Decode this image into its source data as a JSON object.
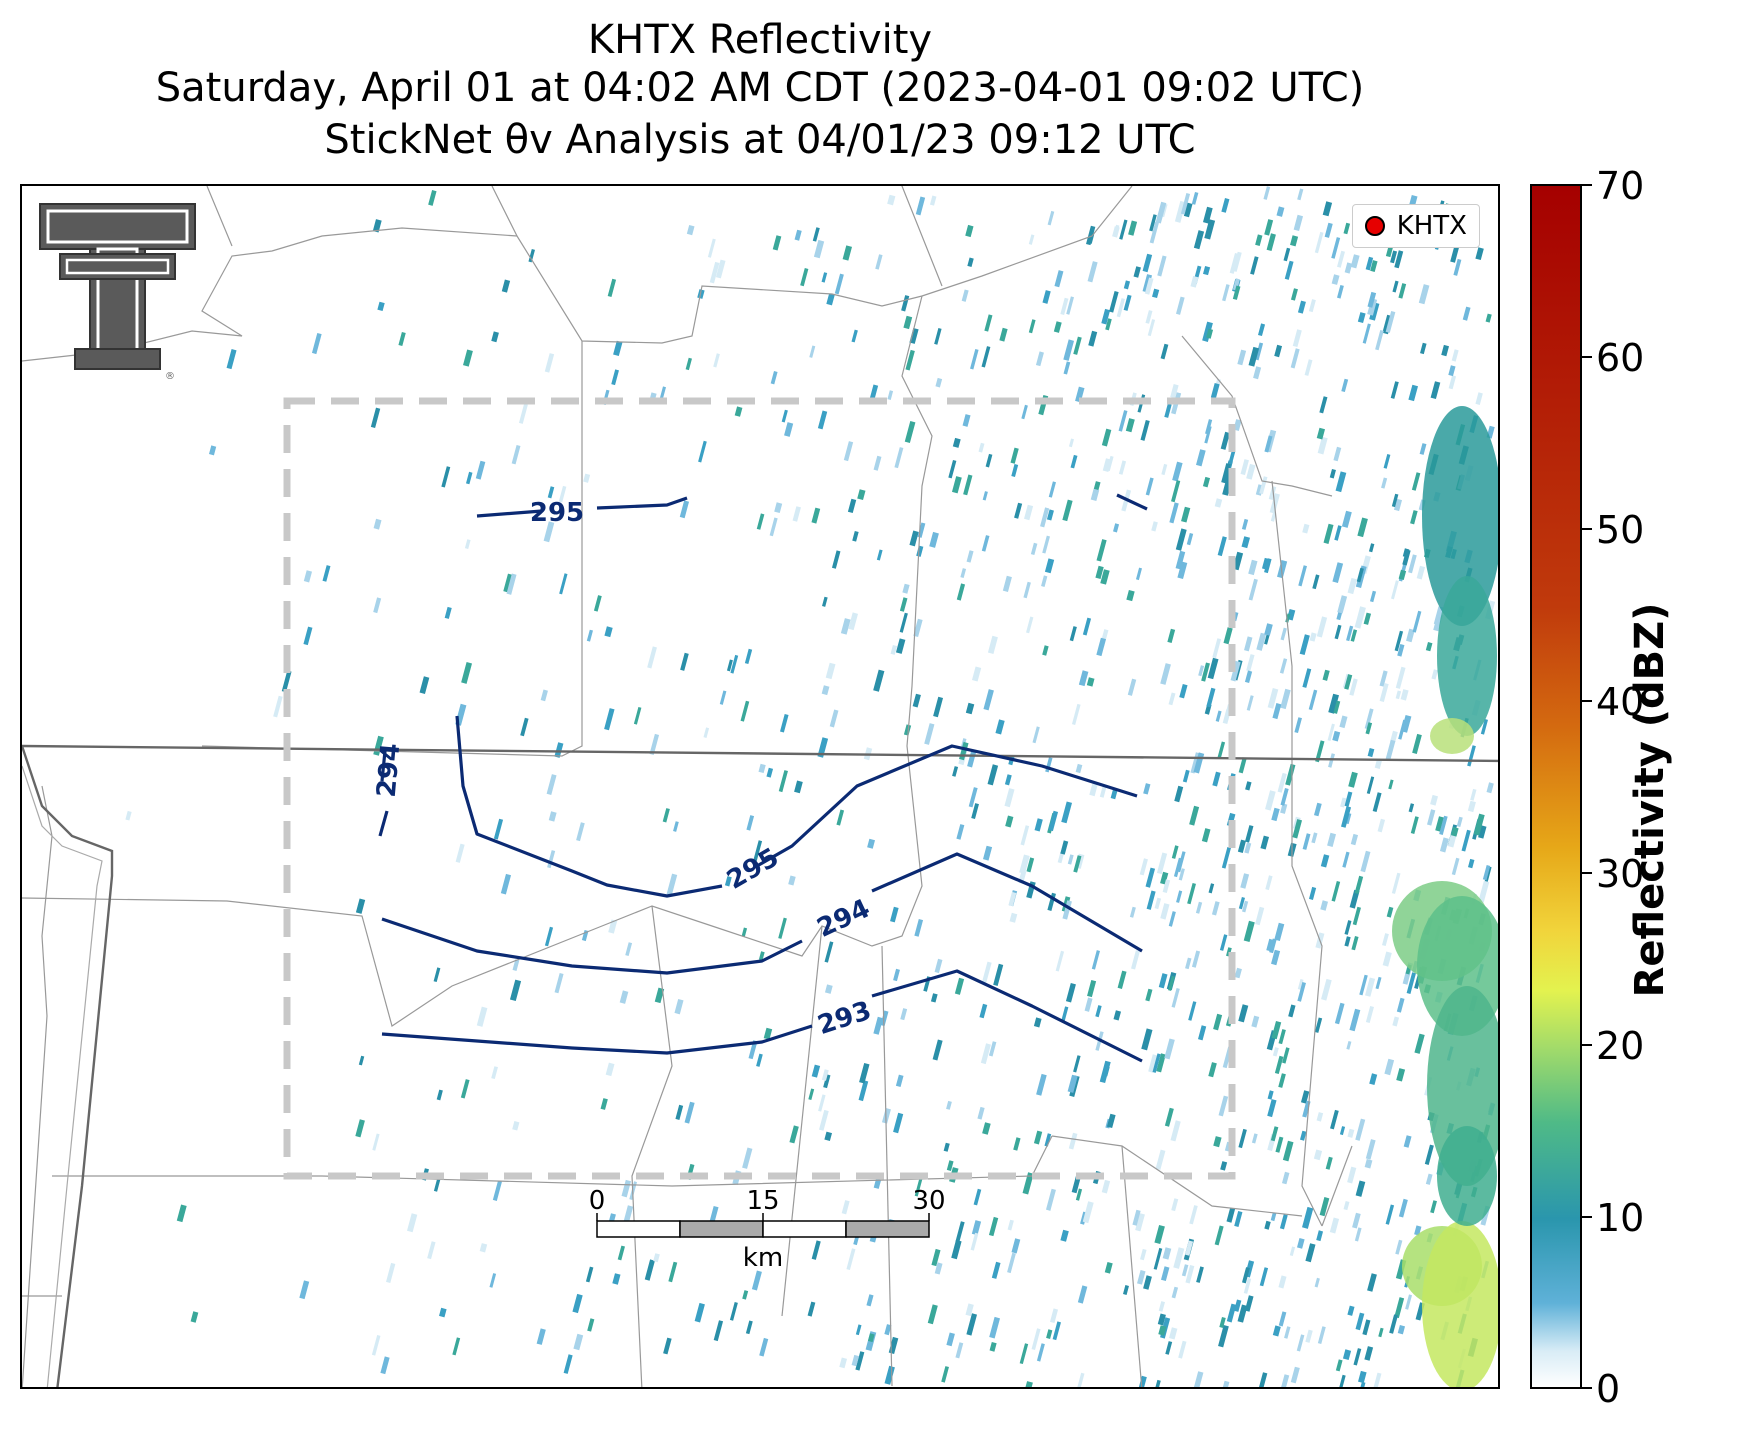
{
  "title": {
    "line1": "KHTX Reflectivity",
    "line2": "Saturday, April 01 at 04:02 AM CDT (2023-04-01 09:02 UTC)",
    "line3": "StickNet θv Analysis at 04/01/23 09:12 UTC"
  },
  "legend": {
    "label": "KHTX",
    "marker_color": "#e60000"
  },
  "colorbar": {
    "label": "Reflectivity (dBZ)",
    "ticks": [
      "70",
      "60",
      "50",
      "40",
      "30",
      "20",
      "10",
      "0"
    ],
    "range": [
      0,
      70
    ]
  },
  "contours": [
    {
      "label": "295",
      "color": "#0b2a73"
    },
    {
      "label": "294",
      "color": "#0b2a73"
    },
    {
      "label": "295",
      "color": "#0b2a73"
    },
    {
      "label": "294",
      "color": "#0b2a73"
    },
    {
      "label": "293",
      "color": "#0b2a73"
    }
  ],
  "scale_bar": {
    "ticks": [
      "0",
      "15",
      "30"
    ],
    "unit": "km"
  },
  "logo": "texas-tech-double-t-logo"
}
